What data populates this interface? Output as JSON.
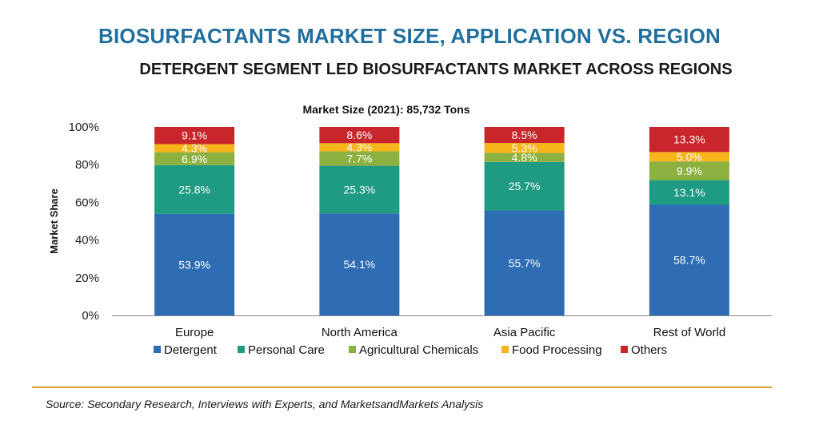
{
  "header": {
    "title": "BIOSURFACTANTS MARKET SIZE, APPLICATION VS. REGION",
    "subtitle": "DETERGENT SEGMENT LED BIOSURFACTANTS MARKET ACROSS REGIONS"
  },
  "footer": {
    "source": "Source: Secondary Research, Interviews with Experts, and MarketsandMarkets Analysis"
  },
  "chart_data": {
    "type": "bar",
    "stacked": true,
    "title": "Market Size (2021): 85,732 Tons",
    "xlabel": "",
    "ylabel": "Market Share",
    "ylim": [
      0,
      100
    ],
    "yticks": [
      "0%",
      "20%",
      "40%",
      "60%",
      "80%",
      "100%"
    ],
    "categories": [
      "Europe",
      "North America",
      "Asia Pacific",
      "Rest of World"
    ],
    "series": [
      {
        "name": "Detergent",
        "color": "#2e6db4",
        "values": [
          53.9,
          54.1,
          55.7,
          58.7
        ],
        "labels": [
          "53.9%",
          "54.1%",
          "55.7%",
          "58.7%"
        ]
      },
      {
        "name": "Personal Care",
        "color": "#1f9a83",
        "values": [
          25.8,
          25.3,
          25.7,
          13.1
        ],
        "labels": [
          "25.8%",
          "25.3%",
          "25.7%",
          "13.1%"
        ]
      },
      {
        "name": "Agricultural Chemicals",
        "color": "#8db140",
        "values": [
          6.9,
          7.7,
          4.8,
          9.9
        ],
        "labels": [
          "6.9%",
          "7.7%",
          "4.8%",
          "9.9%"
        ]
      },
      {
        "name": "Food Processing",
        "color": "#f5b51b",
        "values": [
          4.3,
          4.3,
          5.3,
          5.0
        ],
        "labels": [
          "4.3%",
          "4.3%",
          "5.3%",
          "5.0%"
        ]
      },
      {
        "name": "Others",
        "color": "#c8262a",
        "values": [
          9.1,
          8.6,
          8.5,
          13.3
        ],
        "labels": [
          "9.1%",
          "8.6%",
          "8.5%",
          "13.3%"
        ]
      }
    ],
    "legend_position": "bottom",
    "grid": false
  }
}
